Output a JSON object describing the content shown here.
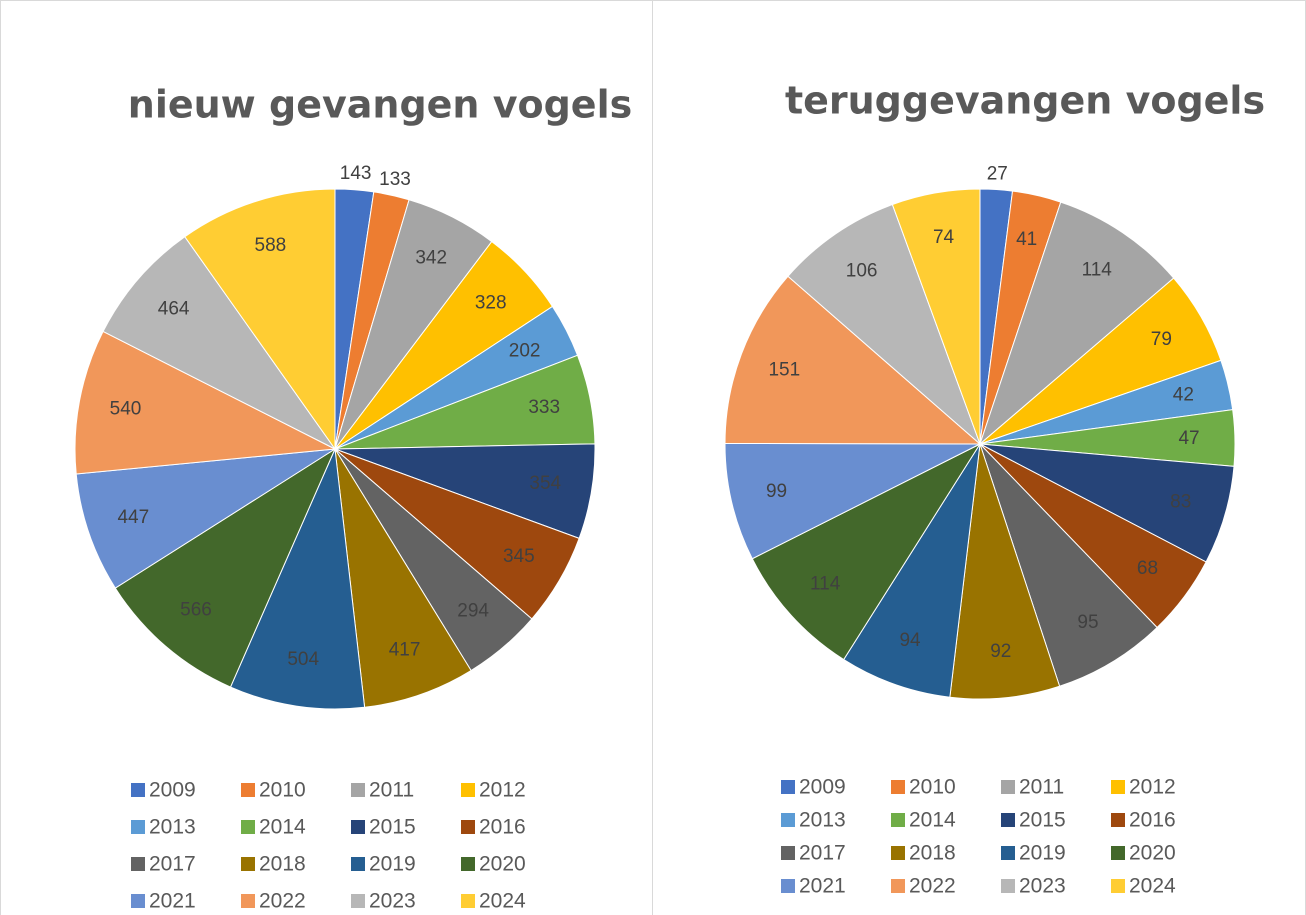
{
  "chart_data": [
    {
      "type": "pie",
      "title": "nieuw gevangen vogels",
      "categories": [
        "2009",
        "2010",
        "2011",
        "2012",
        "2013",
        "2014",
        "2015",
        "2016",
        "2017",
        "2018",
        "2019",
        "2020",
        "2021",
        "2022",
        "2023",
        "2024"
      ],
      "values": [
        143,
        133,
        342,
        328,
        202,
        333,
        354,
        345,
        294,
        417,
        504,
        566,
        447,
        540,
        464,
        588
      ],
      "colors": [
        "#4472c4",
        "#ed7d31",
        "#a5a5a5",
        "#ffc000",
        "#5b9bd5",
        "#70ad47",
        "#264478",
        "#9e480e",
        "#636363",
        "#997300",
        "#255e91",
        "#43682b",
        "#698ed0",
        "#f1975a",
        "#b7b7b7",
        "#ffcd33"
      ],
      "legend": "bottom"
    },
    {
      "type": "pie",
      "title": "teruggevangen vogels",
      "categories": [
        "2009",
        "2010",
        "2011",
        "2012",
        "2013",
        "2014",
        "2015",
        "2016",
        "2017",
        "2018",
        "2019",
        "2020",
        "2021",
        "2022",
        "2023",
        "2024"
      ],
      "values": [
        27,
        41,
        114,
        79,
        42,
        47,
        83,
        68,
        95,
        92,
        94,
        114,
        99,
        151,
        106,
        74
      ],
      "colors": [
        "#4472c4",
        "#ed7d31",
        "#a5a5a5",
        "#ffc000",
        "#5b9bd5",
        "#70ad47",
        "#264478",
        "#9e480e",
        "#636363",
        "#997300",
        "#255e91",
        "#43682b",
        "#698ed0",
        "#f1975a",
        "#b7b7b7",
        "#ffcd33"
      ],
      "legend": "bottom"
    }
  ]
}
